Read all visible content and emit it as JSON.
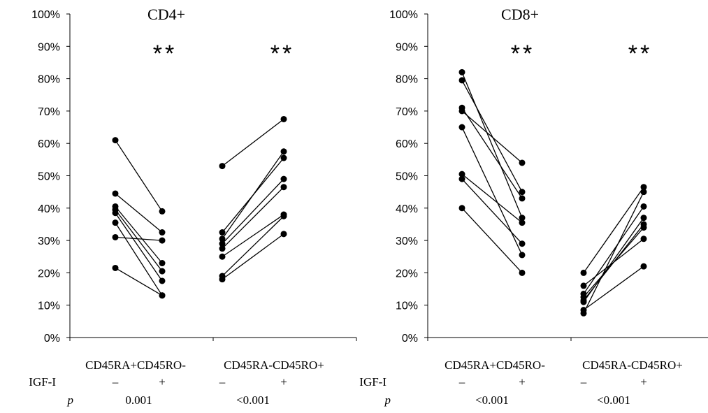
{
  "chart_data": [
    {
      "type": "line",
      "title": "CD4+",
      "ylim": [
        0,
        100
      ],
      "yticks": [
        "0%",
        "10%",
        "20%",
        "30%",
        "40%",
        "50%",
        "60%",
        "70%",
        "80%",
        "90%",
        "100%"
      ],
      "groups": [
        {
          "label": "CD45RA+CD45RO-",
          "significance": "**",
          "p": "0.001",
          "pairs": [
            [
              61,
              39
            ],
            [
              44.5,
              32.5
            ],
            [
              40.5,
              23
            ],
            [
              39.5,
              20.5
            ],
            [
              38.5,
              17.5
            ],
            [
              35.5,
              13
            ],
            [
              31,
              30
            ],
            [
              21.5,
              13
            ]
          ]
        },
        {
          "label": "CD45RA-CD45RO+",
          "significance": "**",
          "p": "<0.001",
          "pairs": [
            [
              53,
              67.5
            ],
            [
              32.5,
              55.5
            ],
            [
              30.5,
              57.5
            ],
            [
              29,
              49
            ],
            [
              27.5,
              46.5
            ],
            [
              25,
              38
            ],
            [
              19,
              37.5
            ],
            [
              18,
              32
            ]
          ]
        }
      ]
    },
    {
      "type": "line",
      "title": "CD8+",
      "ylim": [
        0,
        100
      ],
      "yticks": [
        "0%",
        "10%",
        "20%",
        "30%",
        "40%",
        "50%",
        "60%",
        "70%",
        "80%",
        "90%",
        "100%"
      ],
      "groups": [
        {
          "label": "CD45RA+CD45RO-",
          "significance": "**",
          "p": "<0.001",
          "pairs": [
            [
              82,
              37
            ],
            [
              79.5,
              45
            ],
            [
              71,
              43
            ],
            [
              70,
              54
            ],
            [
              65,
              25.5
            ],
            [
              50.5,
              35.5
            ],
            [
              49,
              29
            ],
            [
              40,
              20
            ]
          ]
        },
        {
          "label": "CD45RA-CD45RO+",
          "significance": "**",
          "p": "<0.001",
          "pairs": [
            [
              20,
              46.5
            ],
            [
              16,
              30.5
            ],
            [
              13.5,
              40.5
            ],
            [
              12.5,
              34
            ],
            [
              11.5,
              35
            ],
            [
              11,
              37
            ],
            [
              8.5,
              22
            ],
            [
              7.5,
              45
            ]
          ]
        }
      ]
    }
  ],
  "rows": {
    "igf_label": "IGF-I",
    "p_label": "p",
    "minus": "–",
    "plus": "+"
  }
}
